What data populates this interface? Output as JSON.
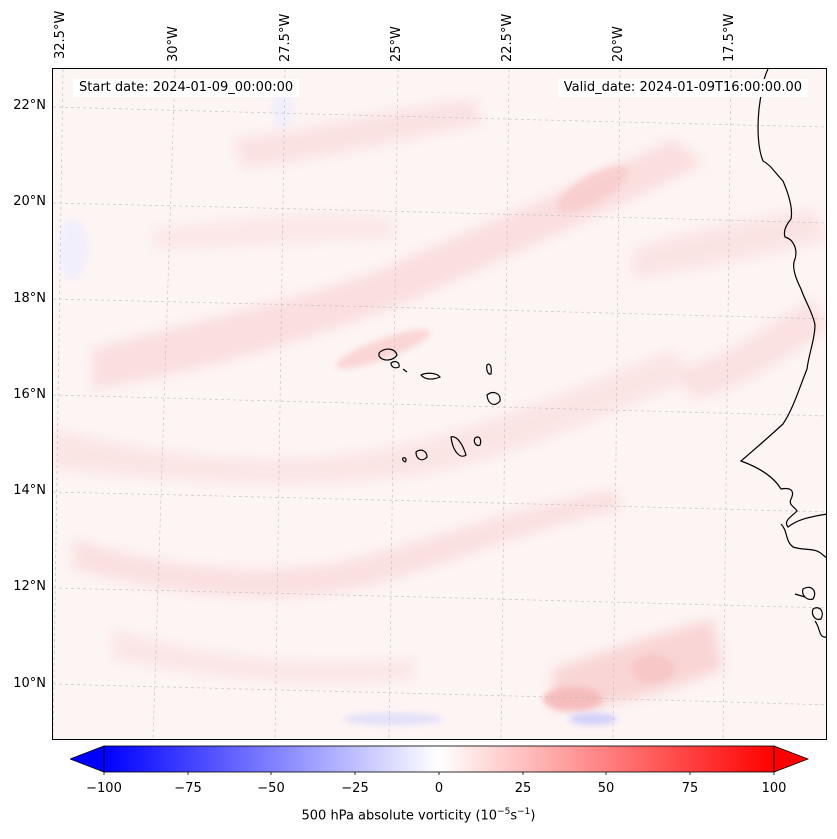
{
  "map": {
    "start_label": "Start date: 2024-01-09_00:00:00",
    "valid_label": "Valid_date: 2024-01-09T16:00:00.00",
    "longitude_labels": [
      "32.5°W",
      "30°W",
      "27.5°W",
      "25°W",
      "22.5°W",
      "20°W",
      "17.5°W"
    ],
    "latitude_labels": [
      "22°N",
      "20°N",
      "18°N",
      "16°N",
      "14°N",
      "12°N",
      "10°N"
    ],
    "field": "500 hPa absolute vorticity",
    "features": [
      "Cape Verde islands",
      "West African coastline"
    ],
    "colors": {
      "negative": "#0000ff",
      "neutral": "#ffffff",
      "positive": "#ff0000"
    }
  },
  "colorbar": {
    "label_text": "500 hPa absolute vorticity (10",
    "label_exp1": "−5",
    "label_mid": "s",
    "label_exp2": "−1",
    "label_end": ")",
    "tick_labels": [
      "−100",
      "−75",
      "−50",
      "−25",
      "0",
      "25",
      "50",
      "75",
      "100"
    ],
    "min": -100,
    "max": 100,
    "extend": "both"
  }
}
